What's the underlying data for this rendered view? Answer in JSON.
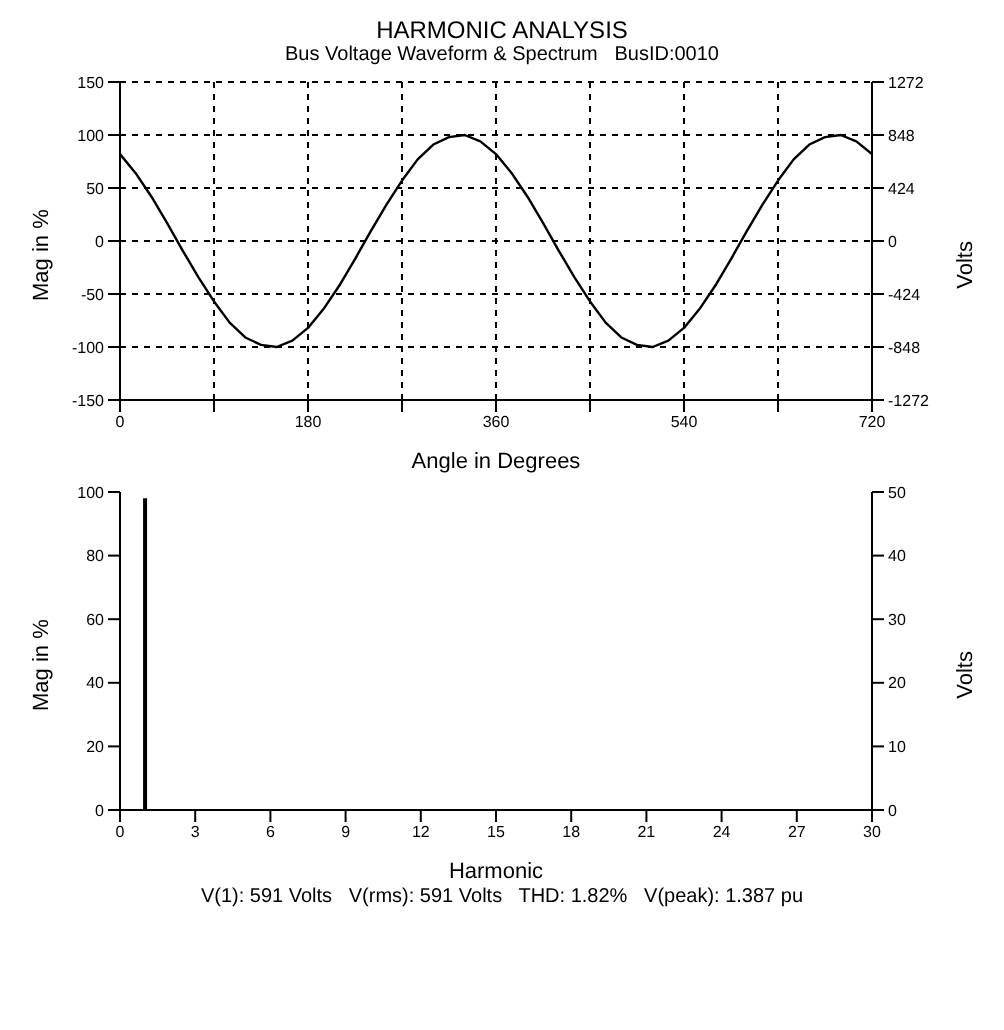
{
  "chart_data": [
    {
      "type": "line",
      "title": "HARMONIC ANALYSIS",
      "subtitle": "Bus Voltage Waveform & Spectrum   BusID:0010",
      "xlabel": "Angle in Degrees",
      "ylabel": "Mag in %",
      "y2label": "Volts",
      "x": [
        0,
        15,
        30,
        45,
        60,
        75,
        90,
        105,
        120,
        135,
        150,
        165,
        180,
        195,
        210,
        225,
        240,
        255,
        270,
        285,
        300,
        315,
        330,
        345,
        360,
        375,
        390,
        405,
        420,
        435,
        450,
        465,
        480,
        495,
        510,
        525,
        540,
        555,
        570,
        585,
        600,
        615,
        630,
        645,
        660,
        675,
        690,
        705,
        720
      ],
      "series": [
        {
          "color": "#000000",
          "values": [
            82,
            64,
            42,
            17,
            -9,
            -34,
            -57,
            -77,
            -91,
            -98,
            -100,
            -94,
            -82,
            -64,
            -42,
            -17,
            9,
            34,
            57,
            77,
            91,
            98,
            100,
            94,
            82,
            64,
            42,
            17,
            -9,
            -34,
            -57,
            -77,
            -91,
            -98,
            -100,
            -94,
            -82,
            -64,
            -42,
            -17,
            9,
            34,
            57,
            77,
            91,
            98,
            100,
            94,
            82
          ]
        }
      ],
      "xlim": [
        0,
        720
      ],
      "xticks": [
        0,
        {
          "value": 90,
          "label": null
        },
        180,
        {
          "value": 270,
          "label": null
        },
        360,
        {
          "value": 450,
          "label": null
        },
        540,
        {
          "value": 630,
          "label": null
        },
        720
      ],
      "ylim": [
        -150,
        150
      ],
      "yticks": [
        -150,
        -100,
        -50,
        0,
        50,
        100,
        150
      ],
      "y2lim": [
        -1272,
        1272
      ],
      "y2ticks": [
        -1272,
        -848,
        -424,
        0,
        424,
        848,
        1272
      ],
      "grid": true,
      "line_style": "solid",
      "marker": "none"
    },
    {
      "type": "bar",
      "xlabel": "Harmonic",
      "ylabel": "Mag in %",
      "y2label": "Volts",
      "annotations": [
        "V(1): 591 Volts   V(rms): 591 Volts   THD: 1.82%   V(peak): 1.387 pu"
      ],
      "x": [
        1
      ],
      "series": [
        {
          "color": "#000000",
          "values": [
            98
          ]
        }
      ],
      "xlim": [
        0,
        30
      ],
      "xticks": [
        0,
        3,
        6,
        9,
        12,
        15,
        18,
        21,
        24,
        27,
        30
      ],
      "ylim": [
        0,
        100
      ],
      "yticks": [
        0,
        20,
        40,
        60,
        80,
        100
      ],
      "y2lim": [
        0,
        50
      ],
      "y2ticks": [
        0,
        10,
        20,
        30,
        40,
        50
      ]
    }
  ]
}
